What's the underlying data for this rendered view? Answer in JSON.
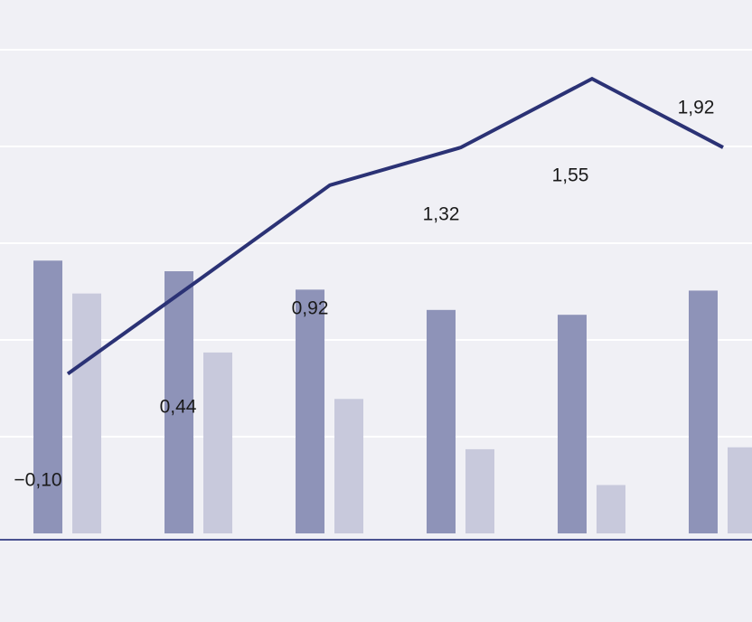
{
  "chart_data": {
    "type": "bar",
    "ylim": [
      0,
      5
    ],
    "yticks": [
      1,
      2,
      3,
      4,
      5
    ],
    "grid": true,
    "series": [
      {
        "color": "#8e93b8",
        "values": [
          2.82,
          2.71,
          2.52,
          2.31,
          2.26,
          2.51
        ]
      },
      {
        "color": "#c8c9dc",
        "values": [
          2.48,
          1.87,
          1.39,
          0.87,
          0.5,
          0.89
        ]
      },
      {
        "type": "line",
        "color": "#2b3275",
        "values": [
          1.65,
          2.62,
          3.6,
          3.99,
          4.7,
          3.99
        ]
      }
    ],
    "annotations": [
      "−0,10",
      "0,44",
      "0,92",
      "1,32",
      "1,55",
      "1,92"
    ]
  }
}
